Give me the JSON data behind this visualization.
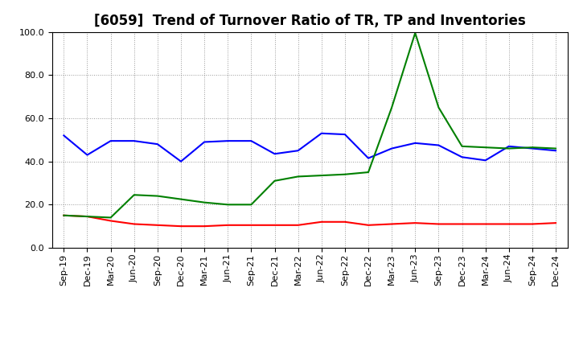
{
  "title": "[6059]  Trend of Turnover Ratio of TR, TP and Inventories",
  "ylim": [
    0.0,
    100.0
  ],
  "yticks": [
    0.0,
    20.0,
    40.0,
    60.0,
    80.0,
    100.0
  ],
  "categories": [
    "Sep-19",
    "Dec-19",
    "Mar-20",
    "Jun-20",
    "Sep-20",
    "Dec-20",
    "Mar-21",
    "Jun-21",
    "Sep-21",
    "Dec-21",
    "Mar-22",
    "Jun-22",
    "Sep-22",
    "Dec-22",
    "Mar-23",
    "Jun-23",
    "Sep-23",
    "Dec-23",
    "Mar-24",
    "Jun-24",
    "Sep-24",
    "Dec-24"
  ],
  "trade_receivables": [
    15.0,
    14.5,
    12.5,
    11.0,
    10.5,
    10.0,
    10.0,
    10.5,
    10.5,
    10.5,
    10.5,
    12.0,
    12.0,
    10.5,
    11.0,
    11.5,
    11.0,
    11.0,
    11.0,
    11.0,
    11.0,
    11.5
  ],
  "trade_payables": [
    52.0,
    43.0,
    49.5,
    49.5,
    48.0,
    40.0,
    49.0,
    49.5,
    49.5,
    43.5,
    45.0,
    53.0,
    52.5,
    41.5,
    46.0,
    48.5,
    47.5,
    42.0,
    40.5,
    47.0,
    46.0,
    45.0
  ],
  "inventories": [
    15.0,
    14.5,
    14.0,
    24.5,
    24.0,
    22.5,
    21.0,
    20.0,
    20.0,
    31.0,
    33.0,
    33.5,
    34.0,
    35.0,
    65.0,
    99.5,
    65.0,
    47.0,
    46.5,
    46.0,
    46.5,
    46.0
  ],
  "tr_color": "#ff0000",
  "tp_color": "#0000ff",
  "inv_color": "#008000",
  "bg_color": "#ffffff",
  "plot_bg_color": "#ffffff",
  "grid_color": "#999999",
  "title_fontsize": 12,
  "legend_fontsize": 9,
  "tick_fontsize": 8
}
